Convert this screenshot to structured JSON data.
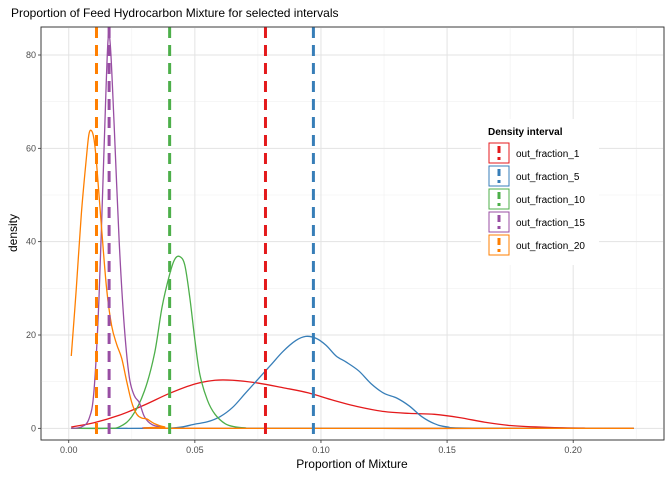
{
  "chart_data": {
    "type": "line",
    "title": "Proportion of Feed Hydrocarbon Mixture for selected intervals",
    "xlabel": "Proportion of Mixture",
    "ylabel": "density",
    "xlim": [
      -0.011,
      0.236
    ],
    "ylim": [
      -2.5,
      86
    ],
    "x_ticks": [
      0.0,
      0.05,
      0.1,
      0.15,
      0.2
    ],
    "x_tick_labels": [
      "0.00",
      "0.05",
      "0.10",
      "0.15",
      "0.20"
    ],
    "y_ticks": [
      0,
      20,
      40,
      60,
      80
    ],
    "y_tick_labels": [
      "0",
      "20",
      "40",
      "60",
      "80"
    ],
    "grid": true,
    "legend": {
      "title": "Density interval",
      "position": "right-inside"
    },
    "series": [
      {
        "name": "out_fraction_1",
        "color": "#E41A1C",
        "mean": 0.078,
        "points": [
          [
            0.001,
            0.3
          ],
          [
            0.01,
            1.2
          ],
          [
            0.02,
            2.8
          ],
          [
            0.03,
            5.0
          ],
          [
            0.04,
            7.5
          ],
          [
            0.05,
            9.5
          ],
          [
            0.058,
            10.3
          ],
          [
            0.065,
            10.3
          ],
          [
            0.075,
            9.7
          ],
          [
            0.085,
            8.7
          ],
          [
            0.095,
            7.6
          ],
          [
            0.105,
            6.0
          ],
          [
            0.115,
            4.6
          ],
          [
            0.125,
            3.6
          ],
          [
            0.135,
            3.2
          ],
          [
            0.145,
            3.0
          ],
          [
            0.155,
            2.3
          ],
          [
            0.165,
            1.3
          ],
          [
            0.175,
            0.6
          ],
          [
            0.19,
            0.2
          ],
          [
            0.205,
            0.05
          ],
          [
            0.224,
            0.0
          ]
        ]
      },
      {
        "name": "out_fraction_5",
        "color": "#377EB8",
        "mean": 0.097,
        "points": [
          [
            0.001,
            0.0
          ],
          [
            0.03,
            0.0
          ],
          [
            0.04,
            0.05
          ],
          [
            0.045,
            0.3
          ],
          [
            0.05,
            0.9
          ],
          [
            0.055,
            1.4
          ],
          [
            0.06,
            2.5
          ],
          [
            0.065,
            4.5
          ],
          [
            0.07,
            7.5
          ],
          [
            0.075,
            10.5
          ],
          [
            0.08,
            13.5
          ],
          [
            0.085,
            16.5
          ],
          [
            0.09,
            18.8
          ],
          [
            0.094,
            19.7
          ],
          [
            0.098,
            19.3
          ],
          [
            0.102,
            17.8
          ],
          [
            0.106,
            15.5
          ],
          [
            0.11,
            14.2
          ],
          [
            0.115,
            12.3
          ],
          [
            0.12,
            9.5
          ],
          [
            0.125,
            7.5
          ],
          [
            0.13,
            6.5
          ],
          [
            0.135,
            4.8
          ],
          [
            0.14,
            2.5
          ],
          [
            0.145,
            1.0
          ],
          [
            0.15,
            0.3
          ],
          [
            0.16,
            0.05
          ],
          [
            0.224,
            0.0
          ]
        ]
      },
      {
        "name": "out_fraction_10",
        "color": "#4DAF4A",
        "mean": 0.04,
        "points": [
          [
            0.001,
            0.0
          ],
          [
            0.015,
            0.0
          ],
          [
            0.02,
            0.3
          ],
          [
            0.025,
            2.5
          ],
          [
            0.03,
            8.0
          ],
          [
            0.034,
            16.0
          ],
          [
            0.037,
            26.0
          ],
          [
            0.04,
            33.0
          ],
          [
            0.042,
            36.2
          ],
          [
            0.044,
            36.8
          ],
          [
            0.046,
            35.0
          ],
          [
            0.048,
            28.0
          ],
          [
            0.05,
            19.0
          ],
          [
            0.052,
            11.5
          ],
          [
            0.055,
            6.0
          ],
          [
            0.058,
            3.0
          ],
          [
            0.062,
            1.0
          ],
          [
            0.066,
            0.3
          ],
          [
            0.07,
            0.1
          ],
          [
            0.08,
            0.0
          ],
          [
            0.224,
            0.0
          ]
        ]
      },
      {
        "name": "out_fraction_15",
        "color": "#984EA3",
        "mean": 0.016,
        "points": [
          [
            0.001,
            0.0
          ],
          [
            0.005,
            0.3
          ],
          [
            0.008,
            2.0
          ],
          [
            0.01,
            8.0
          ],
          [
            0.012,
            28.0
          ],
          [
            0.014,
            60.0
          ],
          [
            0.0155,
            82.5
          ],
          [
            0.0165,
            82.0
          ],
          [
            0.018,
            65.0
          ],
          [
            0.02,
            40.0
          ],
          [
            0.022,
            22.0
          ],
          [
            0.024,
            11.0
          ],
          [
            0.026,
            7.0
          ],
          [
            0.028,
            5.5
          ],
          [
            0.03,
            2.5
          ],
          [
            0.033,
            0.8
          ],
          [
            0.037,
            0.3
          ],
          [
            0.045,
            0.0
          ],
          [
            0.224,
            0.0
          ]
        ]
      },
      {
        "name": "out_fraction_20",
        "color": "#FF7F00",
        "mean": 0.011,
        "points": [
          [
            0.001,
            15.5
          ],
          [
            0.003,
            30.0
          ],
          [
            0.005,
            46.0
          ],
          [
            0.007,
            58.0
          ],
          [
            0.008,
            63.0
          ],
          [
            0.009,
            63.8
          ],
          [
            0.01,
            62.0
          ],
          [
            0.011,
            57.0
          ],
          [
            0.013,
            43.0
          ],
          [
            0.015,
            30.0
          ],
          [
            0.017,
            22.0
          ],
          [
            0.019,
            18.0
          ],
          [
            0.021,
            15.0
          ],
          [
            0.023,
            10.0
          ],
          [
            0.025,
            5.5
          ],
          [
            0.027,
            3.0
          ],
          [
            0.029,
            2.2
          ],
          [
            0.031,
            2.0
          ],
          [
            0.034,
            1.0
          ],
          [
            0.038,
            0.3
          ],
          [
            0.045,
            0.0
          ],
          [
            0.224,
            0.0
          ]
        ]
      }
    ]
  }
}
